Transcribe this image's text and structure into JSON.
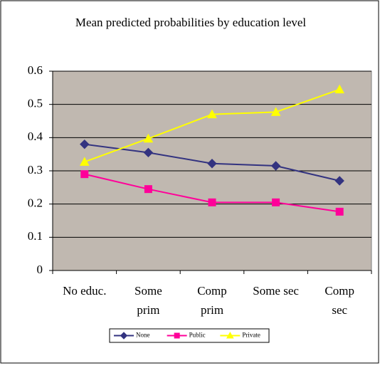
{
  "chart_data": {
    "type": "line",
    "title": "Mean predicted probabilities by education level",
    "categories": [
      "No educ.",
      "Some\nprim",
      "Comp\nprim",
      "Some sec",
      "Comp\nsec"
    ],
    "series": [
      {
        "name": "None",
        "color": "#333380",
        "marker": "diamond",
        "values": [
          0.38,
          0.355,
          0.322,
          0.315,
          0.27
        ]
      },
      {
        "name": "Public",
        "color": "#ff0099",
        "marker": "square",
        "values": [
          0.29,
          0.245,
          0.205,
          0.205,
          0.177
        ]
      },
      {
        "name": "Private",
        "color": "#ffff00",
        "marker": "triangle",
        "values": [
          0.327,
          0.397,
          0.47,
          0.477,
          0.545
        ]
      }
    ],
    "ylim": [
      0,
      0.6
    ],
    "yticks": [
      0,
      0.1,
      0.2,
      0.3,
      0.4,
      0.5,
      0.6
    ],
    "grid": true,
    "legend": "bottom"
  }
}
